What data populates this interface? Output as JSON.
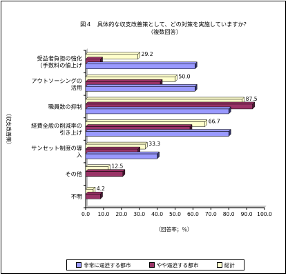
{
  "chart_data": {
    "type": "bar",
    "orientation": "horizontal",
    "title": "図４　具体的な収支改善策として、どの対策を実施していますか？",
    "subtitle": "（複数回答）",
    "ylabel": "（収支改善策）",
    "xlabel": "（回答率；％）",
    "xlim": [
      0,
      100
    ],
    "xticks": [
      "0.0",
      "10.0",
      "20.0",
      "30.0",
      "40.0",
      "50.0",
      "60.0",
      "70.0",
      "80.0",
      "90.0",
      "100.0"
    ],
    "categories": [
      [
        "受益者負担の強化",
        "（手数料の値上げ"
      ],
      [
        "アウトソーシングの",
        "活用"
      ],
      [
        "職員数の抑制"
      ],
      [
        "経費全般の削減率の",
        "引き上げ"
      ],
      [
        "サンセット制度の導",
        "入"
      ],
      [
        "その他"
      ],
      [
        "不明"
      ]
    ],
    "series": [
      {
        "name": "総計",
        "values": [
          29.2,
          50.0,
          87.5,
          66.7,
          33.3,
          12.5,
          4.2
        ],
        "color": "#ffffcc",
        "shadow": "#ffffcc"
      },
      {
        "name": "やや逼迫する都市",
        "values": [
          8.3,
          41.7,
          93.3,
          58.3,
          29.2,
          20.8,
          8.3
        ],
        "color": "#993366",
        "shadow": "#4a1a33"
      },
      {
        "name": "非常に逼迫する都市",
        "values": [
          61.1,
          61.1,
          80.0,
          80.0,
          40.0,
          0,
          0
        ],
        "color": "#9999ff",
        "shadow": "#333366"
      }
    ],
    "data_labels": [
      "29.2",
      "50.0",
      "87.5",
      "66.7",
      "33.3",
      "12.5",
      "4.2"
    ],
    "legend": {
      "position": "bottom",
      "order": [
        "非常に逼迫する都市",
        "やや逼迫する都市",
        "総計"
      ]
    },
    "grid": false
  }
}
